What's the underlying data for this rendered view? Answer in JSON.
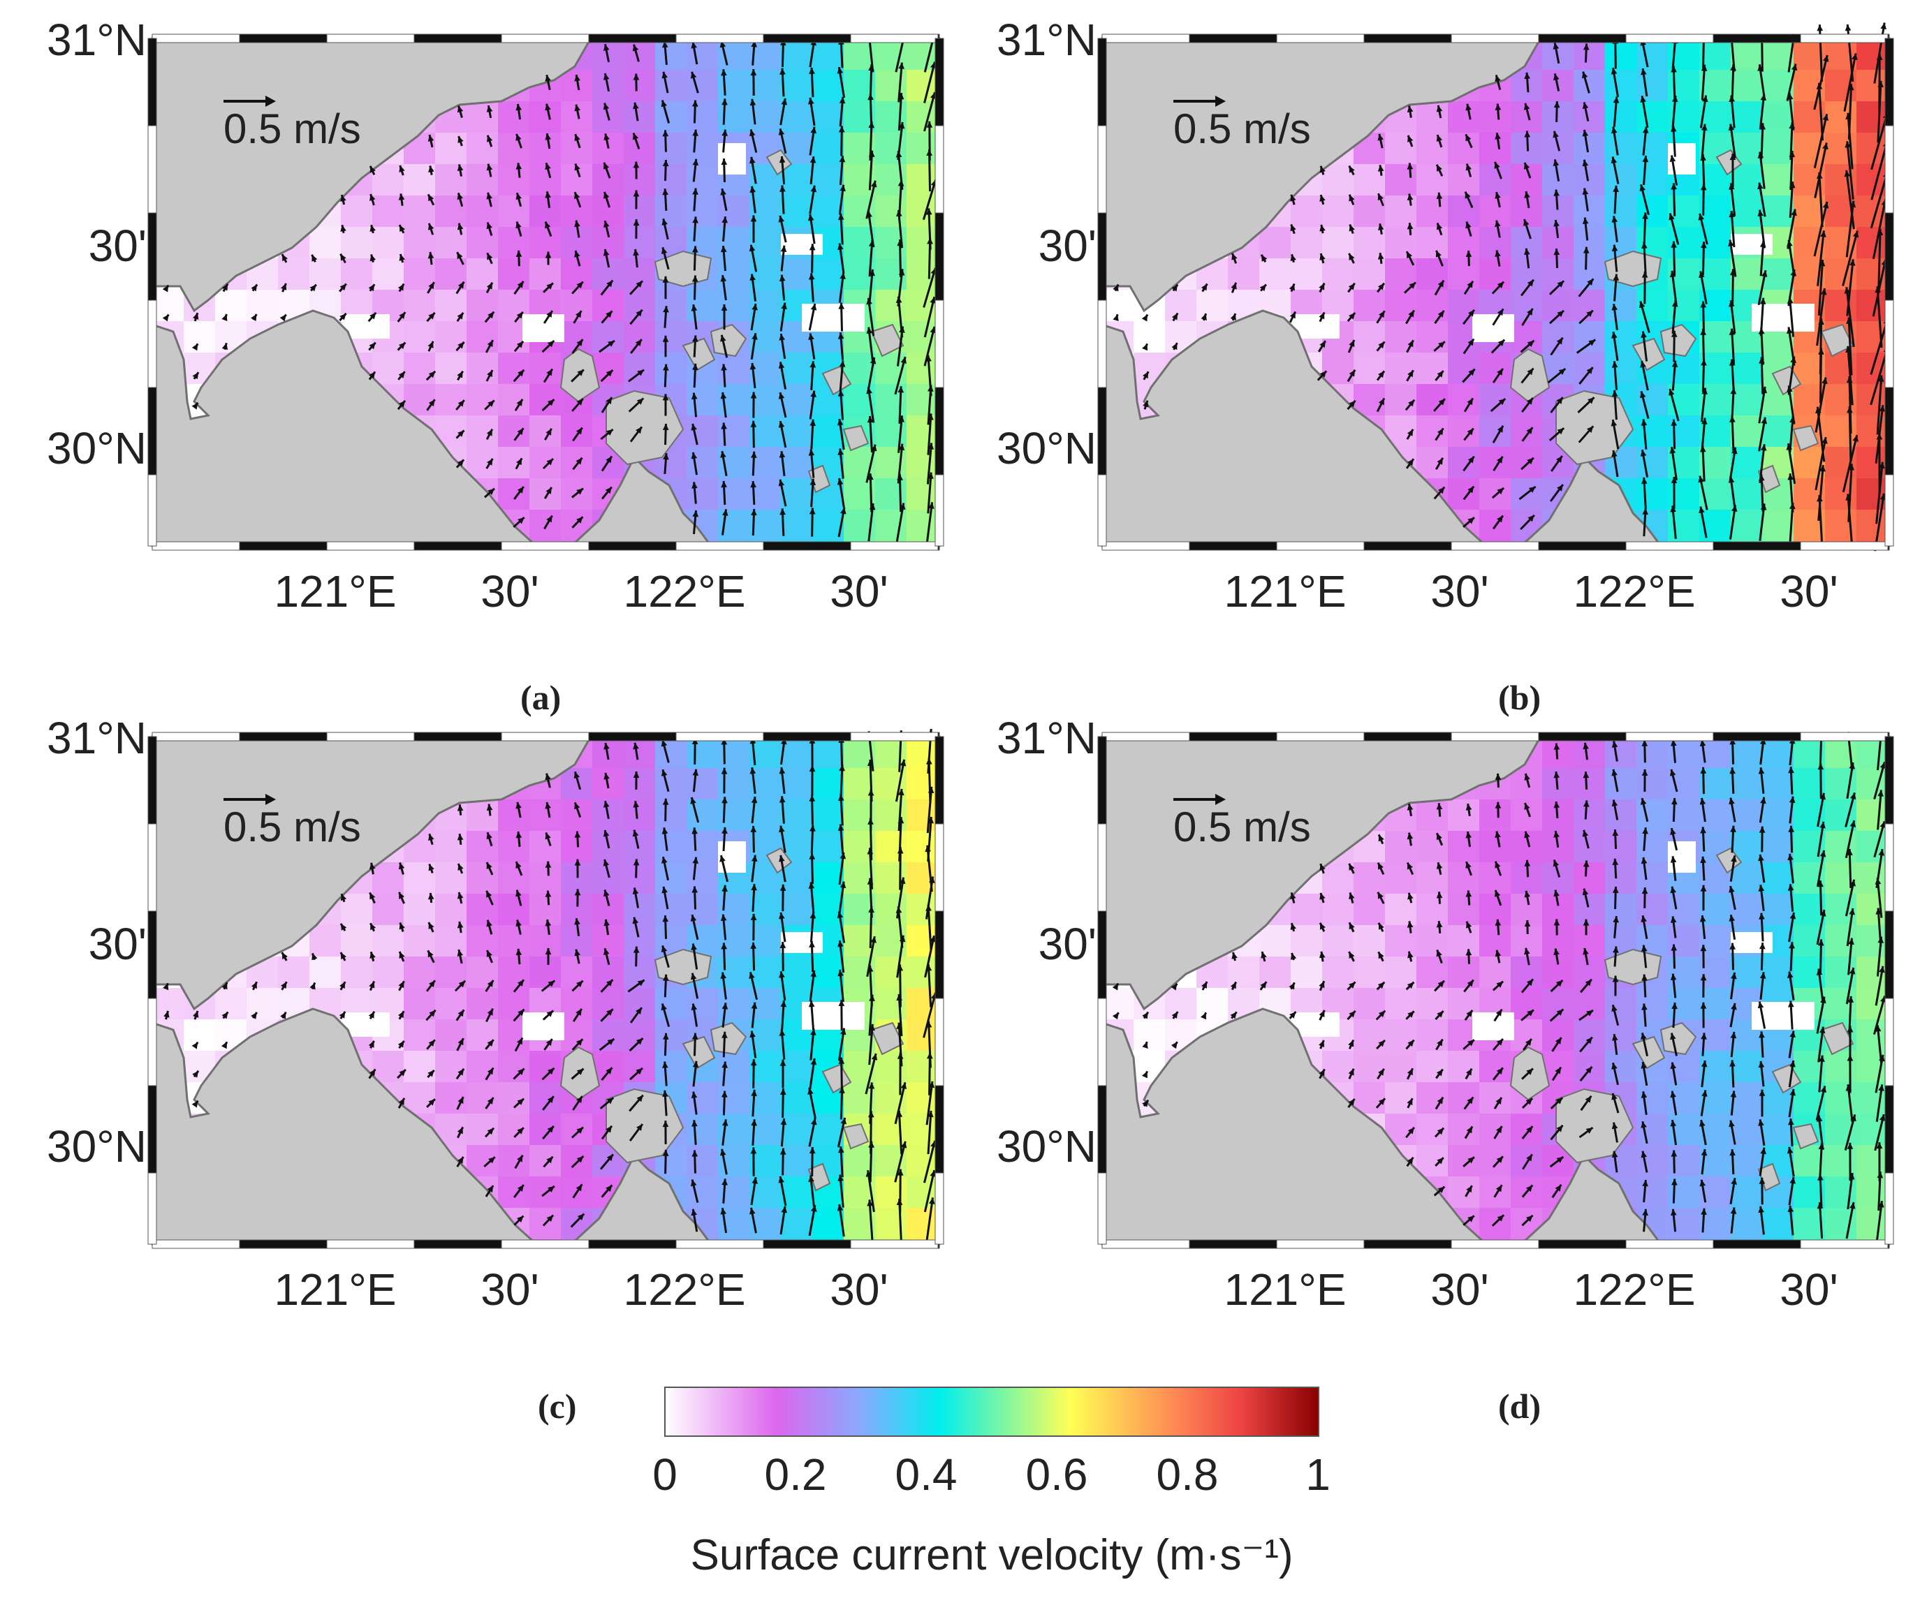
{
  "colors": {
    "land": "#c8c8c8",
    "coast": "#707070",
    "frame_dark": "#111111",
    "colormap": [
      "#ffffff",
      "#dd66ee",
      "#88aaff",
      "#00eeee",
      "#ffff55",
      "#ff8855",
      "#ee4444",
      "#880000"
    ]
  },
  "axes": {
    "y_labels": [
      "31°N",
      "30'",
      "30°N"
    ],
    "x_labels": [
      "121°E",
      "30'",
      "122°E",
      "30'"
    ]
  },
  "panels": [
    {
      "id": "a",
      "caption": "(a)",
      "scale_label": "0.5 m/s",
      "intensity": 0.55
    },
    {
      "id": "b",
      "caption": "(b)",
      "scale_label": "0.5 m/s",
      "intensity": 1.0
    },
    {
      "id": "c",
      "caption": "(c)",
      "scale_label": "0.5 m/s",
      "intensity": 0.65
    },
    {
      "id": "d",
      "caption": "(d)",
      "scale_label": "0.5 m/s",
      "intensity": 0.5
    }
  ],
  "colorbar": {
    "ticks": [
      "0",
      "0.2",
      "0.4",
      "0.6",
      "0.8",
      "1"
    ],
    "range": [
      0,
      1
    ],
    "title": "Surface current velocity (m·s⁻¹)"
  }
}
